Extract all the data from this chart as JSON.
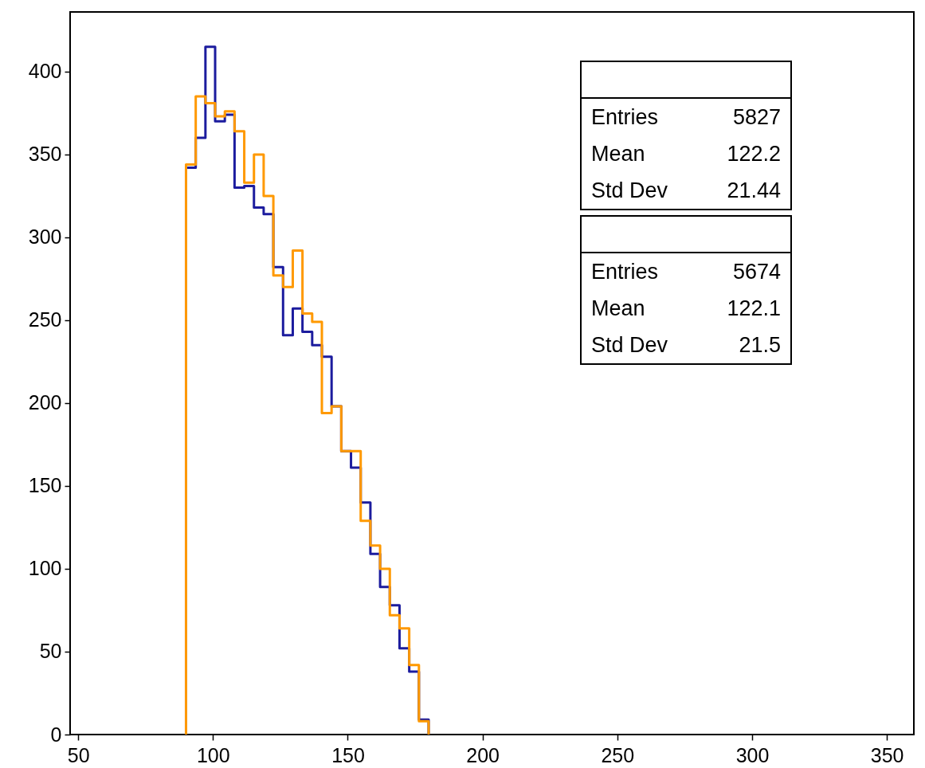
{
  "chart_data": {
    "type": "histogram",
    "bins": [
      90,
      93.6,
      97.2,
      100.8,
      104.4,
      108,
      111.6,
      115.2,
      118.8,
      122.4,
      126,
      129.6,
      133.2,
      136.8,
      140.4,
      144,
      147.6,
      151.2,
      154.8,
      158.4,
      162,
      165.6,
      169.2,
      172.8,
      176.4,
      180
    ],
    "series": [
      {
        "color": "#1c1c9e",
        "values": [
          342,
          360,
          415,
          370,
          374,
          330,
          331,
          318,
          314,
          282,
          241,
          257,
          243,
          235,
          228,
          198,
          171,
          161,
          140,
          109,
          89,
          78,
          52,
          38,
          9
        ]
      },
      {
        "color": "#ff9900",
        "values": [
          344,
          385,
          381,
          373,
          376,
          364,
          333,
          350,
          325,
          277,
          270,
          292,
          254,
          249,
          194,
          198,
          171,
          171,
          129,
          114,
          100,
          72,
          64,
          42,
          8
        ]
      }
    ],
    "xlim": [
      47,
      360
    ],
    "xticks": [
      50,
      100,
      150,
      200,
      250,
      300,
      350
    ],
    "ylim": [
      0,
      436
    ],
    "yticks": [
      0,
      50,
      100,
      150,
      200,
      250,
      300,
      350,
      400
    ],
    "annotations": [
      "Entries",
      "5827",
      "Mean",
      "122.2",
      "Std Dev",
      "21.44",
      "Entries",
      "5674",
      "Mean",
      "122.1",
      "Std Dev",
      "21.5"
    ]
  }
}
